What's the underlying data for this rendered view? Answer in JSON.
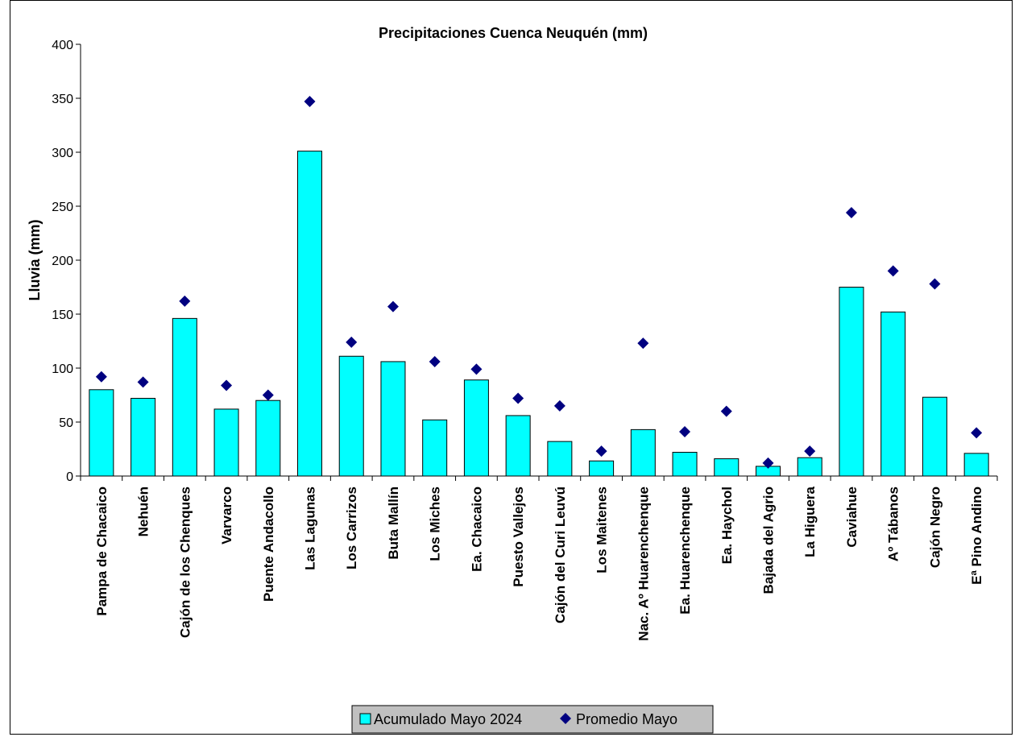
{
  "chart_data": {
    "type": "bar",
    "title": "Precipitaciones Cuenca Neuquén (mm)",
    "xlabel": "",
    "ylabel": "Lluvia (mm)",
    "ylim": [
      0,
      400
    ],
    "yticks": [
      0,
      50,
      100,
      150,
      200,
      250,
      300,
      350,
      400
    ],
    "grid": false,
    "legend_position": "bottom",
    "categories": [
      "Pampa de Chacaico",
      "Nehuén",
      "Cajón de los Chenques",
      "Varvarco",
      "Puente Andacollo",
      "Las Lagunas",
      "Los Carrizos",
      "Buta Mallín",
      "Los Miches",
      "Ea. Chacaico",
      "Puesto Vallejos",
      "Cajón del Curi Leuvú",
      "Los Maitenes",
      "Nac. Aº Huarenchenque",
      "Ea. Huarenchenque",
      "Ea. Haychol",
      "Bajada del Agrio",
      "La Higuera",
      "Caviahue",
      "Aº Tábanos",
      "Cajón Negro",
      "Eª Pino Andino"
    ],
    "series": [
      {
        "name": "Acumulado Mayo 2024",
        "type": "bar",
        "color": "#00FFFF",
        "values": [
          80,
          72,
          146,
          62,
          70,
          301,
          111,
          106,
          52,
          89,
          56,
          32,
          14,
          43,
          22,
          16,
          9,
          17,
          175,
          152,
          73,
          21
        ]
      },
      {
        "name": "Promedio Mayo",
        "type": "scatter",
        "marker": "diamond",
        "color": "#000080",
        "values": [
          92,
          87,
          162,
          84,
          75,
          347,
          124,
          157,
          106,
          99,
          72,
          65,
          23,
          123,
          41,
          60,
          12,
          23,
          244,
          190,
          178,
          40
        ]
      }
    ]
  }
}
